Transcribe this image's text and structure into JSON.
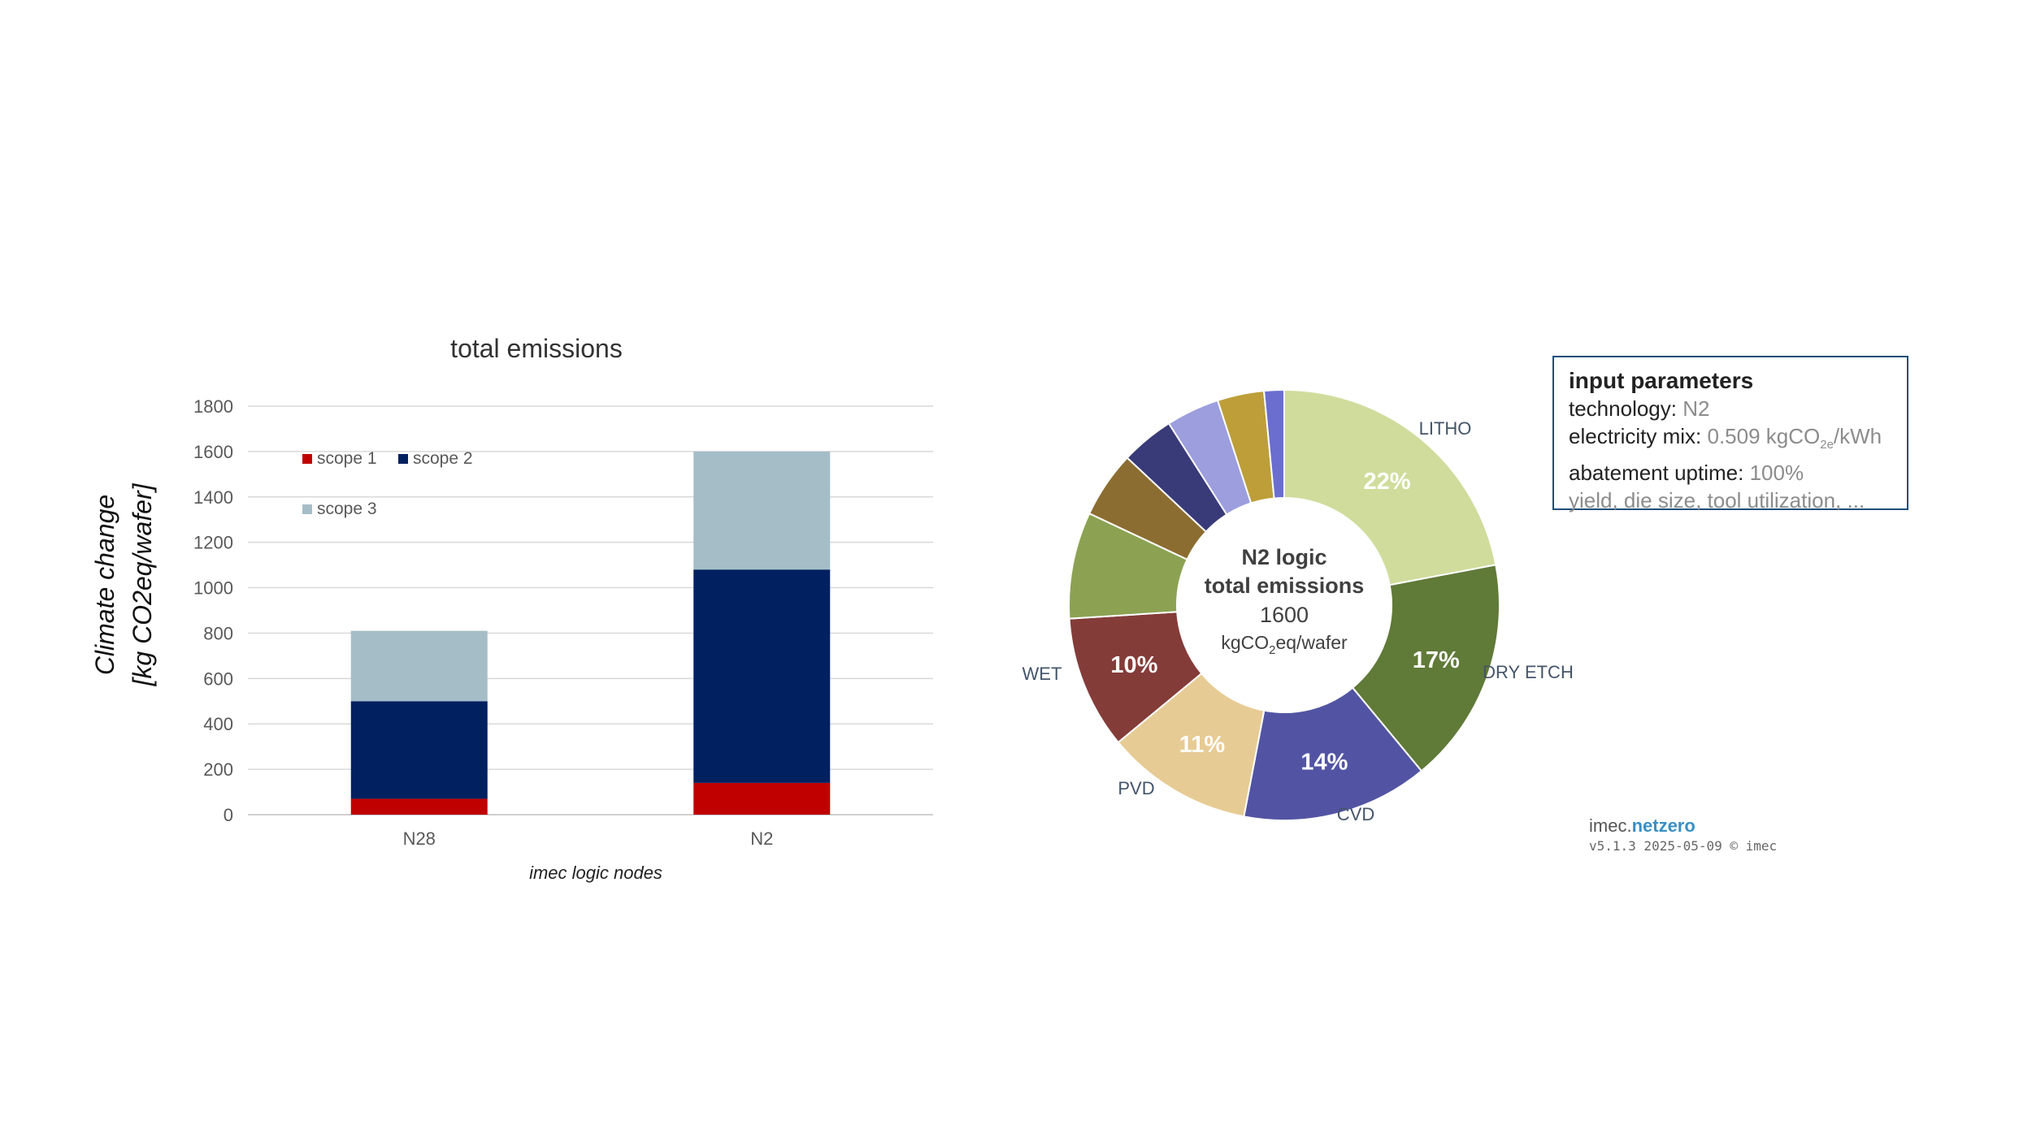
{
  "chart_data": [
    {
      "type": "bar",
      "stacked": true,
      "title": "total emissions",
      "xlabel": "imec logic nodes",
      "ylabel": "Climate change [kg CO2eq/wafer]",
      "ylabel_lines": [
        "Climate change",
        "[kg CO2eq/wafer]"
      ],
      "ylim": [
        0,
        1800
      ],
      "yticks": [
        0,
        200,
        400,
        600,
        800,
        1000,
        1200,
        1400,
        1600,
        1800
      ],
      "grid": true,
      "legend_position": "top-left",
      "categories": [
        "N28",
        "N2"
      ],
      "series": [
        {
          "name": "scope 1",
          "color": "#c00000",
          "values": [
            70,
            140
          ]
        },
        {
          "name": "scope 2",
          "color": "#002060",
          "values": [
            430,
            940
          ]
        },
        {
          "name": "scope 3",
          "color": "#a5bdc7",
          "values": [
            310,
            520
          ]
        }
      ]
    },
    {
      "type": "pie",
      "donut": true,
      "center_text": {
        "line1": "N2 logic",
        "line2": "total emissions",
        "value": "1600",
        "unit_prefix": "kgCO",
        "unit_sub": "2",
        "unit_suffix": "eq/wafer"
      },
      "slices": [
        {
          "label": "LITHO",
          "value": 22,
          "value_label": "22%",
          "color": "#d0dc9c"
        },
        {
          "label": "DRY ETCH",
          "value": 17,
          "value_label": "17%",
          "color": "#607a38"
        },
        {
          "label": "CVD",
          "value": 14,
          "value_label": "14%",
          "color": "#5254a3"
        },
        {
          "label": "PVD",
          "value": 11,
          "value_label": "11%",
          "color": "#e7cb94"
        },
        {
          "label": "WET",
          "value": 10,
          "value_label": "10%",
          "color": "#843c39"
        },
        {
          "label": "",
          "value": 8,
          "value_label": "",
          "color": "#8ca252"
        },
        {
          "label": "",
          "value": 5,
          "value_label": "",
          "color": "#8c6d31"
        },
        {
          "label": "",
          "value": 4,
          "value_label": "",
          "color": "#393b79"
        },
        {
          "label": "",
          "value": 4,
          "value_label": "",
          "color": "#9c9ede"
        },
        {
          "label": "",
          "value": 3.5,
          "value_label": "",
          "color": "#bd9e39"
        },
        {
          "label": "",
          "value": 1.5,
          "value_label": "",
          "color": "#6b6ecf"
        }
      ]
    }
  ],
  "params": {
    "title": "input parameters",
    "technology_label": "technology:",
    "technology_value": "N2",
    "electricity_label": "electricity mix:",
    "electricity_value_prefix": "0.509 kgCO",
    "electricity_value_sub": "2e",
    "electricity_value_suffix": "/kWh",
    "abatement_label": "abatement uptime:",
    "abatement_value": "100%",
    "other_line": "yield, die size, tool utilization, ..."
  },
  "brand": {
    "prefix": "imec.",
    "name": "netzero",
    "version": "v5.1.3 2025-05-09 © imec"
  }
}
